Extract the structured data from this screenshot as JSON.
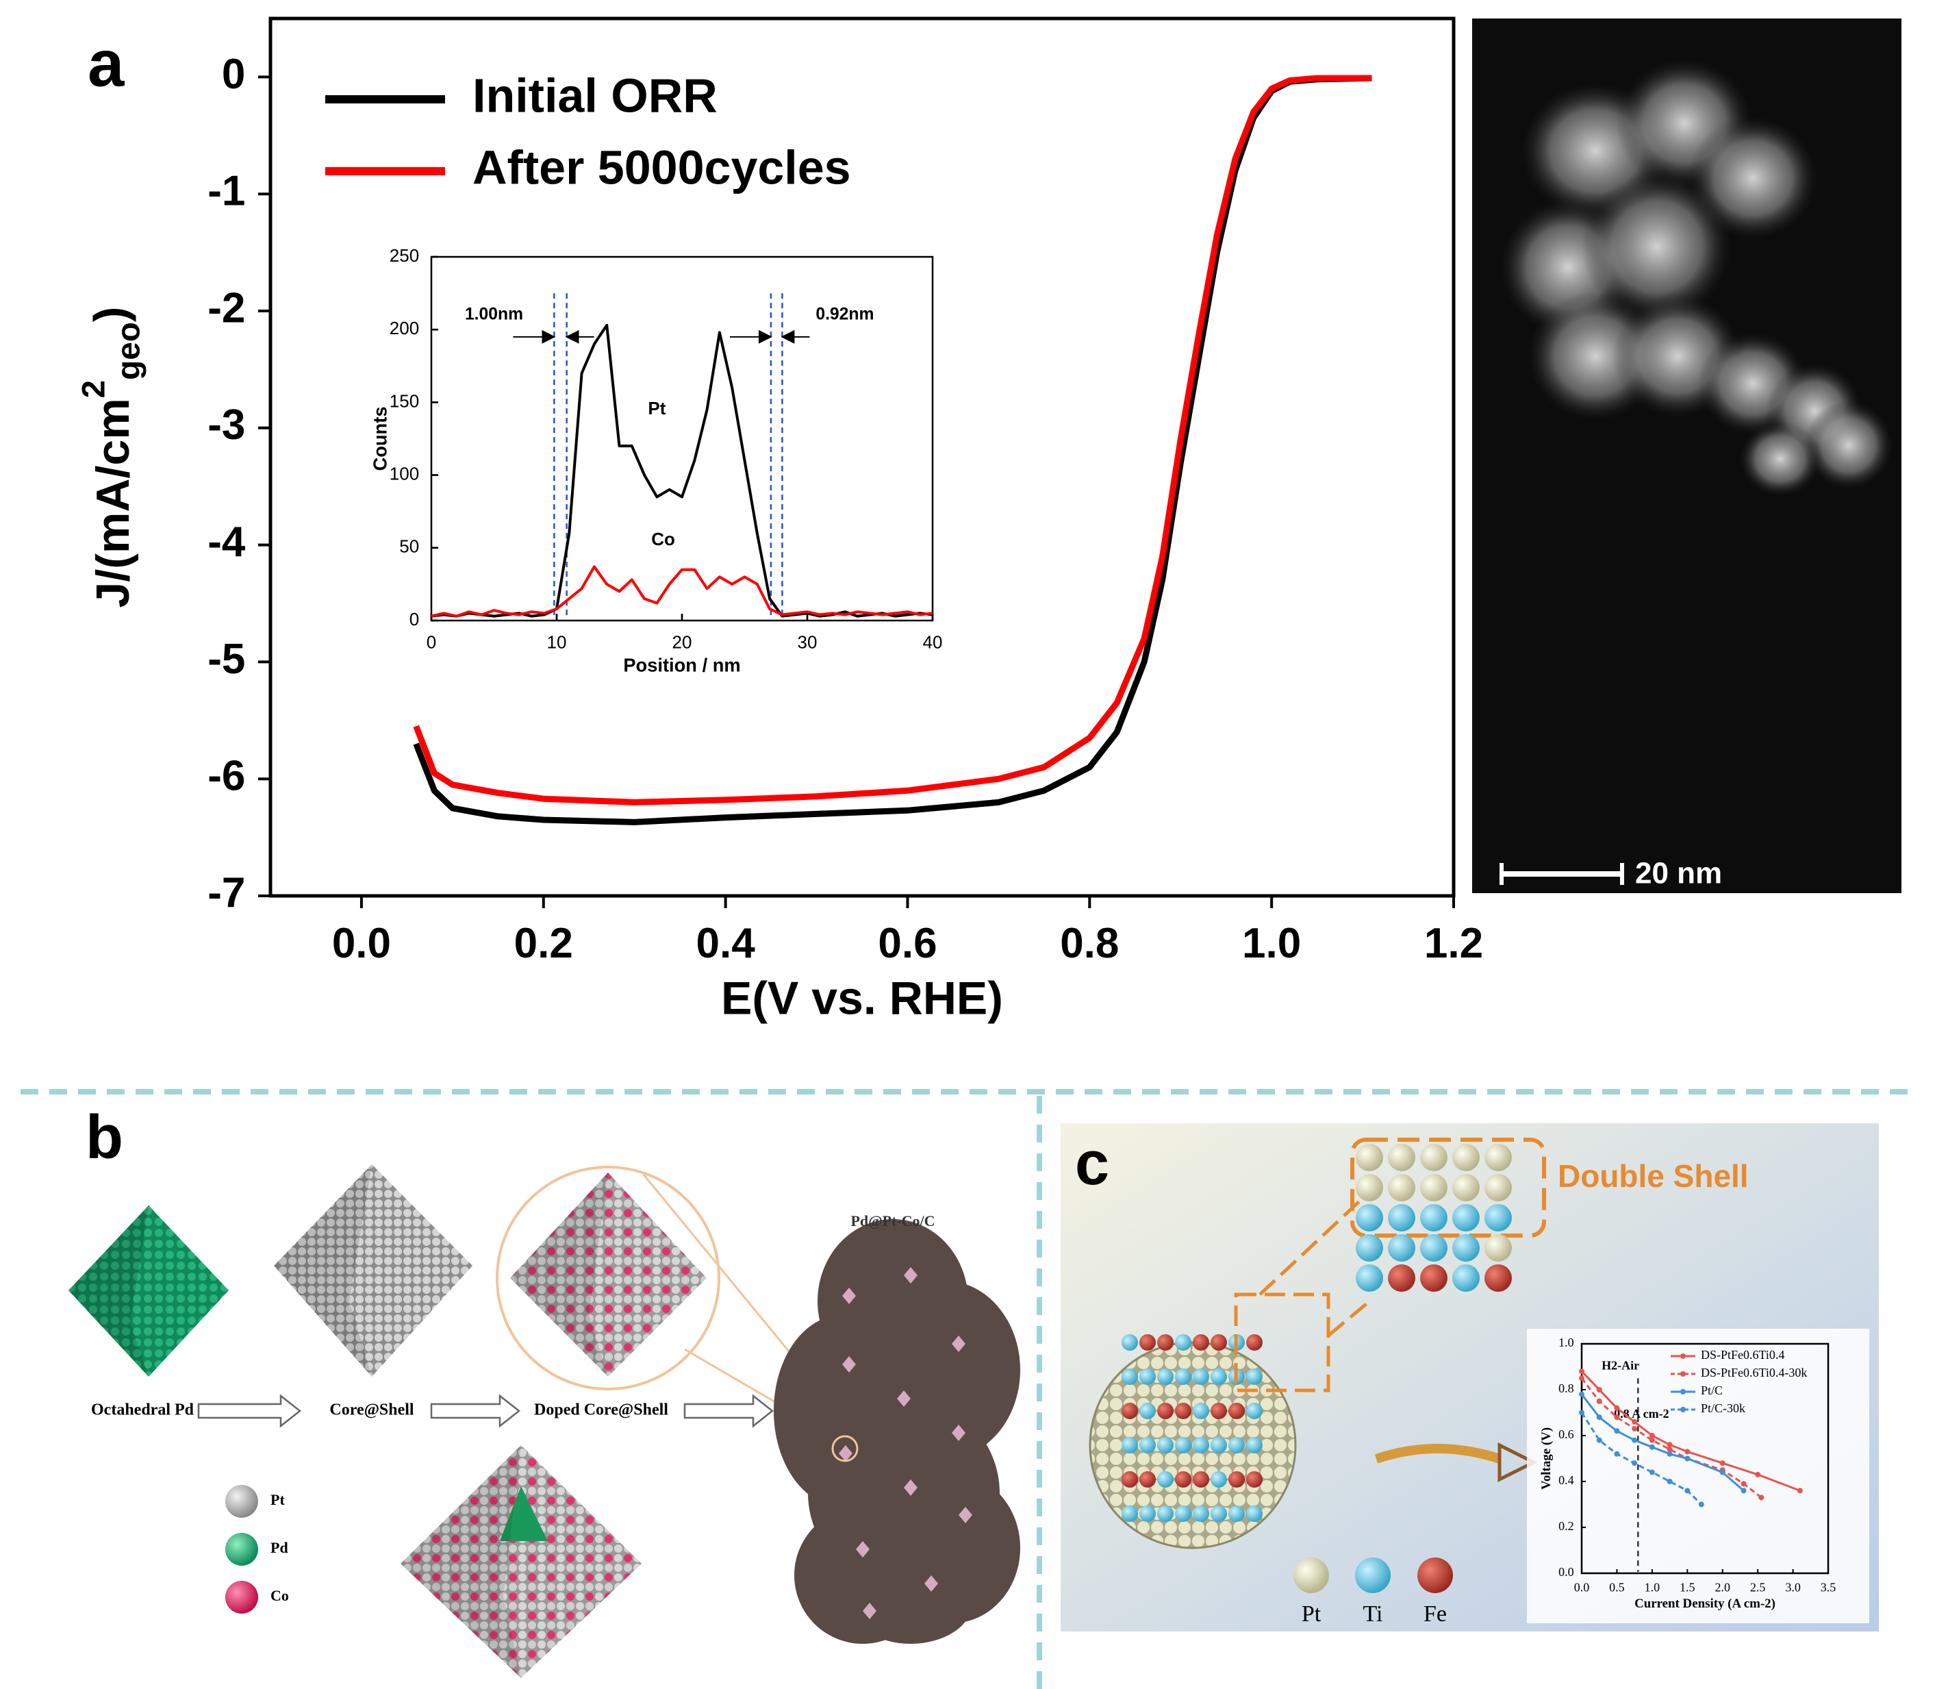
{
  "chart_data": [
    {
      "type": "line",
      "xlabel": "E(V vs. RHE)",
      "ylabel": [
        "J/(mA/cm",
        "2",
        "geo",
        ")"
      ],
      "x": [
        0.06,
        0.08,
        0.1,
        0.15,
        0.2,
        0.3,
        0.4,
        0.5,
        0.6,
        0.7,
        0.75,
        0.8,
        0.83,
        0.86,
        0.88,
        0.9,
        0.92,
        0.94,
        0.96,
        0.98,
        1.0,
        1.02,
        1.05,
        1.11
      ],
      "series": [
        {
          "name": "Initial ORR",
          "color": "#000000",
          "values": [
            -5.7,
            -6.1,
            -6.25,
            -6.32,
            -6.35,
            -6.37,
            -6.33,
            -6.3,
            -6.27,
            -6.2,
            -6.1,
            -5.9,
            -5.6,
            -5.0,
            -4.3,
            -3.3,
            -2.4,
            -1.5,
            -0.8,
            -0.35,
            -0.12,
            -0.04,
            -0.02,
            -0.01
          ]
        },
        {
          "name": "After 5000cycles",
          "color": "#ff0000",
          "values": [
            -5.55,
            -5.95,
            -6.05,
            -6.12,
            -6.17,
            -6.2,
            -6.18,
            -6.15,
            -6.1,
            -6.0,
            -5.9,
            -5.65,
            -5.35,
            -4.8,
            -4.1,
            -3.1,
            -2.2,
            -1.35,
            -0.7,
            -0.3,
            -0.1,
            -0.03,
            -0.01,
            -0.01
          ]
        }
      ],
      "xlim": [
        -0.1,
        1.2
      ],
      "ylim": [
        -7,
        0.5
      ],
      "xticks": [
        {
          "value": 0,
          "label": "0.0"
        },
        0.2,
        0.4,
        0.6,
        0.8,
        {
          "value": 1,
          "label": "1.0"
        },
        1.2
      ],
      "yticks": [
        -7,
        -6,
        -5,
        -4,
        -3,
        -2,
        -1,
        0
      ],
      "grid": false,
      "legend": "upper left"
    },
    {
      "type": "line",
      "xlabel": "Position / nm",
      "ylabel": "Counts",
      "x": [
        0,
        1,
        2,
        3,
        4,
        5,
        6,
        7,
        8,
        9,
        10,
        11,
        12,
        13,
        14,
        15,
        16,
        17,
        18,
        19,
        20,
        21,
        22,
        23,
        24,
        25,
        26,
        27,
        28,
        29,
        30,
        31,
        32,
        33,
        34,
        35,
        36,
        37,
        38,
        39,
        40
      ],
      "series": [
        {
          "name": "Pt",
          "color": "#000000",
          "values": [
            3,
            4,
            3,
            5,
            4,
            3,
            4,
            5,
            3,
            4,
            8,
            60,
            170,
            190,
            203,
            120,
            120,
            100,
            85,
            90,
            85,
            110,
            145,
            198,
            160,
            110,
            60,
            15,
            3,
            4,
            5,
            3,
            4,
            6,
            3,
            4,
            5,
            3,
            4,
            5,
            4
          ]
        },
        {
          "name": "Co",
          "color": "#ff0000",
          "values": [
            3,
            5,
            3,
            6,
            4,
            7,
            5,
            4,
            6,
            5,
            8,
            15,
            22,
            37,
            25,
            20,
            28,
            15,
            12,
            25,
            35,
            35,
            22,
            30,
            25,
            30,
            25,
            8,
            4,
            5,
            6,
            4,
            5,
            4,
            6,
            5,
            4,
            5,
            6,
            4,
            5
          ]
        }
      ],
      "vlines": [
        9.8,
        10.8,
        27.1,
        28.0
      ],
      "annotations": [
        {
          "text": "1.00nm",
          "x": 5,
          "y": 210
        },
        {
          "text": "0.92nm",
          "x": 33,
          "y": 210
        }
      ],
      "xlim": [
        0,
        40
      ],
      "ylim": [
        0,
        250
      ],
      "xticks": [
        0,
        10,
        20,
        30,
        40
      ],
      "yticks": [
        0,
        50,
        100,
        150,
        200,
        250
      ],
      "grid": false
    },
    {
      "type": "line",
      "xlabel": "Current Density (A cm-2)",
      "ylabel": "Voltage (V)",
      "series": [
        {
          "name": "DS-PtFe0.6Ti0.4",
          "color": "#e8534f",
          "dashed": false,
          "x": [
            0,
            0.25,
            0.5,
            0.75,
            1,
            1.25,
            1.5,
            2,
            2.5,
            3.1
          ],
          "values": [
            0.88,
            0.8,
            0.72,
            0.66,
            0.6,
            0.56,
            0.53,
            0.48,
            0.43,
            0.36
          ]
        },
        {
          "name": "DS-PtFe0.6Ti0.4-30k",
          "color": "#e8534f",
          "dashed": true,
          "x": [
            0,
            0.25,
            0.5,
            0.75,
            1,
            1.25,
            1.5,
            2,
            2.3,
            2.55
          ],
          "values": [
            0.85,
            0.75,
            0.68,
            0.63,
            0.58,
            0.54,
            0.5,
            0.45,
            0.39,
            0.33
          ]
        },
        {
          "name": "Pt/C",
          "color": "#3f8fd9",
          "dashed": false,
          "x": [
            0,
            0.25,
            0.5,
            0.75,
            1,
            1.25,
            1.5,
            2,
            2.3
          ],
          "values": [
            0.78,
            0.68,
            0.62,
            0.58,
            0.55,
            0.52,
            0.5,
            0.44,
            0.36
          ]
        },
        {
          "name": "Pt/C-30k",
          "color": "#3f8fd9",
          "dashed": true,
          "x": [
            0,
            0.25,
            0.5,
            0.75,
            1,
            1.25,
            1.5,
            1.7
          ],
          "values": [
            0.7,
            0.58,
            0.52,
            0.48,
            0.44,
            0.4,
            0.36,
            0.3
          ]
        }
      ],
      "vlines": [
        0.8
      ],
      "annotations": [
        {
          "text": "H2-Air",
          "x": 0.55,
          "y": 0.9
        },
        {
          "text": "0.8 A cm-2",
          "x": 0.85,
          "y": 0.69
        }
      ],
      "xlim": [
        0,
        3.5
      ],
      "ylim": [
        0,
        1.0
      ],
      "xticks": [
        {
          "value": 0,
          "label": "0.0"
        },
        0.5,
        {
          "value": 1,
          "label": "1.0"
        },
        1.5,
        {
          "value": 2,
          "label": "2.0"
        },
        2.5,
        {
          "value": 3,
          "label": "3.0"
        },
        3.5
      ],
      "yticks": [
        {
          "value": 0,
          "label": "0.0"
        },
        0.2,
        0.4,
        0.6,
        0.8,
        {
          "value": 1,
          "label": "1.0"
        }
      ],
      "grid": false,
      "legend": "upper right"
    }
  ],
  "panels": {
    "a": {
      "label": "a",
      "scale_bar": "20 nm"
    },
    "b": {
      "label": "b",
      "steps": [
        "Octahedral Pd",
        "Core@Shell",
        "Doped Core@Shell"
      ],
      "product": "Pd@Pt-Co/C",
      "legend": [
        "Pt",
        "Pd",
        "Co"
      ]
    },
    "c": {
      "label": "c",
      "shell": "Double Shell",
      "legend": [
        "Pt",
        "Ti",
        "Fe"
      ]
    }
  }
}
